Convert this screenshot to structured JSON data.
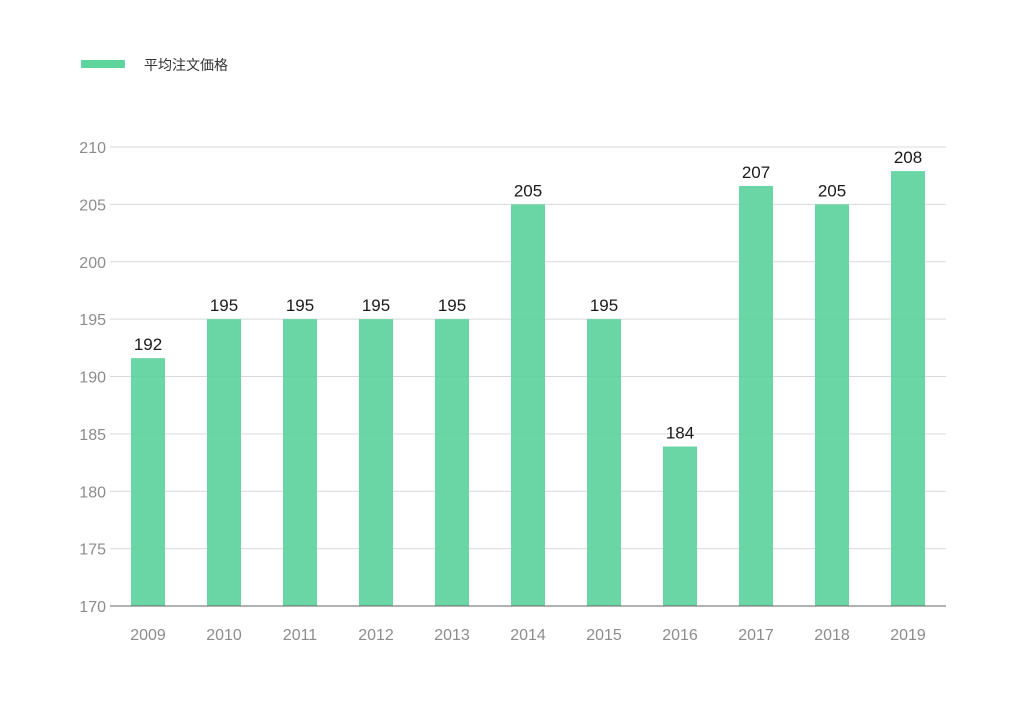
{
  "chart_data": {
    "type": "bar",
    "categories": [
      "2009",
      "2010",
      "2011",
      "2012",
      "2013",
      "2014",
      "2015",
      "2016",
      "2017",
      "2018",
      "2019"
    ],
    "series": [
      {
        "name": "平均注文価格",
        "values": [
          191.6,
          195,
          195,
          195,
          195,
          205,
          195,
          183.9,
          206.6,
          205,
          207.9
        ],
        "labels": [
          "192",
          "195",
          "195",
          "195",
          "195",
          "205",
          "195",
          "184",
          "207",
          "205",
          "208"
        ],
        "color": "#5dd39e"
      }
    ],
    "ylim": [
      170,
      210
    ],
    "yticks": [
      "170",
      "175",
      "180",
      "185",
      "190",
      "195",
      "200",
      "205",
      "210"
    ],
    "grid": true,
    "legend_position": "top-left"
  }
}
